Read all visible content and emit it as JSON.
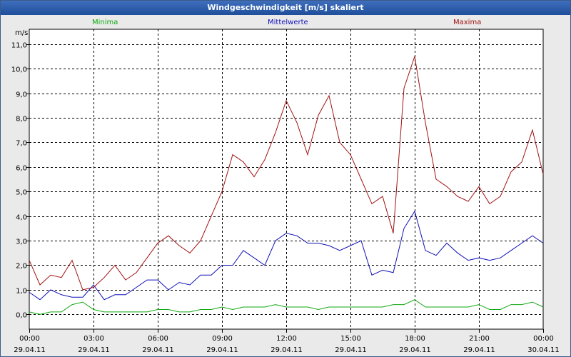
{
  "window": {
    "title": "Windgeschwindigkeit [m/s] skaliert"
  },
  "colors": {
    "min": "#11a811",
    "mean": "#1010b8",
    "max": "#a01212",
    "grid": "#000000",
    "plot_bg": "#ffffff"
  },
  "chart_data": {
    "type": "line",
    "title": "Windgeschwindigkeit [m/s] skaliert",
    "ylabel": "m/s",
    "xlabel": "",
    "ylim": [
      -0.6,
      11.6
    ],
    "xlim": [
      0,
      24
    ],
    "grid": true,
    "y_ticks": [
      0,
      1,
      2,
      3,
      4,
      5,
      6,
      7,
      8,
      9,
      10,
      11
    ],
    "y_tick_labels": [
      "0,0",
      "1,0",
      "2,0",
      "3,0",
      "4,0",
      "5,0",
      "6,0",
      "7,0",
      "8,0",
      "9,0",
      "10,0",
      "11,0"
    ],
    "x_ticks": [
      0,
      3,
      6,
      9,
      12,
      15,
      18,
      21,
      24
    ],
    "x_tick_labels": [
      {
        "time": "00:00",
        "date": "29.04.11"
      },
      {
        "time": "03:00",
        "date": "29.04.11"
      },
      {
        "time": "06:00",
        "date": "29.04.11"
      },
      {
        "time": "09:00",
        "date": "29.04.11"
      },
      {
        "time": "12:00",
        "date": "29.04.11"
      },
      {
        "time": "15:00",
        "date": "29.04.11"
      },
      {
        "time": "18:00",
        "date": "29.04.11"
      },
      {
        "time": "21:00",
        "date": "29.04.11"
      },
      {
        "time": "00:00",
        "date": "30.04.11"
      }
    ],
    "x_hours": [
      0,
      0.5,
      1,
      1.5,
      2,
      2.5,
      3,
      3.5,
      4,
      4.5,
      5,
      5.5,
      6,
      6.5,
      7,
      7.5,
      8,
      8.5,
      9,
      9.5,
      10,
      10.5,
      11,
      11.5,
      12,
      12.5,
      13,
      13.5,
      14,
      14.5,
      15,
      15.5,
      16,
      16.5,
      17,
      17.5,
      18,
      18.5,
      19,
      19.5,
      20,
      20.5,
      21,
      21.5,
      22,
      22.5,
      23,
      23.5,
      24
    ],
    "series": [
      {
        "name": "Minima",
        "values": [
          0.1,
          0.0,
          0.1,
          0.1,
          0.4,
          0.5,
          0.2,
          0.1,
          0.1,
          0.1,
          0.1,
          0.1,
          0.2,
          0.2,
          0.1,
          0.1,
          0.2,
          0.2,
          0.3,
          0.2,
          0.3,
          0.3,
          0.3,
          0.4,
          0.3,
          0.3,
          0.3,
          0.2,
          0.3,
          0.3,
          0.3,
          0.3,
          0.3,
          0.3,
          0.4,
          0.4,
          0.6,
          0.3,
          0.3,
          0.3,
          0.3,
          0.3,
          0.4,
          0.2,
          0.2,
          0.4,
          0.4,
          0.5,
          0.3
        ]
      },
      {
        "name": "Mittelwerte",
        "values": [
          0.9,
          0.6,
          1.0,
          0.8,
          0.7,
          0.7,
          1.2,
          0.6,
          0.8,
          0.8,
          1.1,
          1.4,
          1.4,
          1.0,
          1.3,
          1.2,
          1.6,
          1.6,
          2.0,
          2.0,
          2.6,
          2.3,
          2.0,
          3.0,
          3.3,
          3.2,
          2.9,
          2.9,
          2.8,
          2.6,
          2.8,
          3.0,
          1.6,
          1.8,
          1.7,
          3.5,
          4.2,
          2.6,
          2.4,
          2.9,
          2.5,
          2.2,
          2.3,
          2.2,
          2.3,
          2.6,
          2.9,
          3.2,
          2.9
        ]
      },
      {
        "name": "Maxima",
        "values": [
          2.2,
          1.2,
          1.6,
          1.5,
          2.2,
          1.0,
          1.1,
          1.5,
          2.0,
          1.4,
          1.7,
          2.3,
          2.9,
          3.2,
          2.8,
          2.5,
          3.0,
          4.0,
          5.0,
          6.5,
          6.2,
          5.6,
          6.3,
          7.4,
          8.7,
          7.8,
          6.5,
          8.1,
          8.9,
          7.0,
          6.5,
          5.5,
          4.5,
          4.8,
          3.3,
          9.2,
          10.5,
          7.8,
          5.5,
          5.2,
          4.8,
          4.6,
          5.2,
          4.5,
          4.8,
          5.8,
          6.2,
          7.5,
          5.7
        ]
      }
    ]
  }
}
